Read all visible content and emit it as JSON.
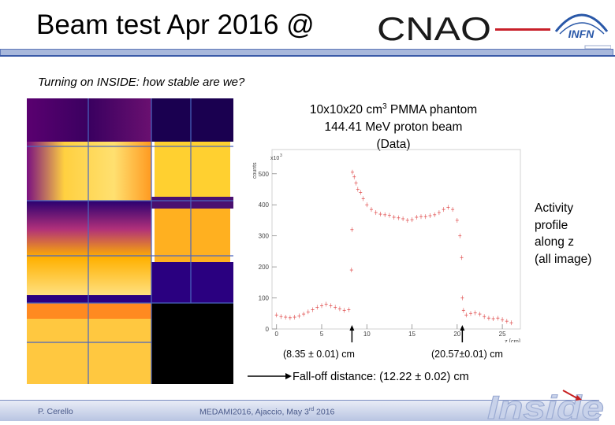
{
  "header": {
    "title": "Beam test Apr 2016 @",
    "cnao_logo": "CNAO",
    "infn_logo": "INFN"
  },
  "subtitle": "Turning on INSIDE: how stable are we?",
  "phantom": {
    "line1": "10x10x20 cm",
    "line1_sup": "3",
    "line1_rest": " PMMA phantom",
    "line2": "144.41 MeV proton beam",
    "line3": "(Data)"
  },
  "activity_note": [
    "Activity",
    "profile",
    "along z",
    "(all image)"
  ],
  "falloff": {
    "left_label": "(8.35 ± 0.01) cm",
    "right_label": "(20.57±0.01) cm",
    "distance_text": "Fall-off distance: (12.22 ± 0.02) cm"
  },
  "footer": {
    "author": "P. Cerello",
    "conference": "MEDAMI2016, Ajaccio, May 3",
    "conference_sup": "rd",
    "conference_rest": " 2016",
    "inside_logo": "Inside"
  },
  "chart_data": {
    "type": "scatter",
    "title": "",
    "xlabel": "z [cm]",
    "ylabel": "counts",
    "y_multiplier_label": "x10",
    "y_multiplier_exp": "3",
    "xlim": [
      -0.5,
      27
    ],
    "ylim": [
      0,
      540
    ],
    "x_ticks": [
      0,
      5,
      10,
      15,
      20,
      25
    ],
    "y_ticks": [
      0,
      100,
      200,
      300,
      400,
      500
    ],
    "grid": false,
    "marker_color": "#e05050",
    "series": [
      {
        "x": [
          0.0,
          0.5,
          1.0,
          1.5,
          2.0,
          2.5,
          3.0,
          3.5,
          4.0,
          4.5,
          5.0,
          5.5,
          6.0,
          6.5,
          7.0,
          7.5,
          8.0,
          8.3,
          8.35,
          8.4,
          8.6,
          8.8,
          9.0,
          9.3,
          9.6,
          10.0,
          10.5,
          11.0,
          11.5,
          12.0,
          12.5,
          13.0,
          13.5,
          14.0,
          14.5,
          15.0,
          15.5,
          16.0,
          16.5,
          17.0,
          17.5,
          18.0,
          18.5,
          19.0,
          19.5,
          20.0,
          20.3,
          20.5,
          20.57,
          20.7,
          21.0,
          21.5,
          22.0,
          22.5,
          23.0,
          23.5,
          24.0,
          24.5,
          25.0,
          25.5,
          26.0
        ],
        "y": [
          45,
          40,
          38,
          36,
          38,
          42,
          48,
          55,
          62,
          70,
          75,
          80,
          75,
          70,
          65,
          60,
          62,
          190,
          320,
          505,
          490,
          470,
          450,
          440,
          420,
          400,
          385,
          375,
          370,
          368,
          366,
          360,
          358,
          355,
          350,
          352,
          360,
          362,
          362,
          365,
          368,
          375,
          385,
          392,
          385,
          350,
          300,
          230,
          100,
          60,
          45,
          50,
          52,
          48,
          40,
          35,
          33,
          35,
          30,
          25,
          20
        ]
      }
    ]
  }
}
